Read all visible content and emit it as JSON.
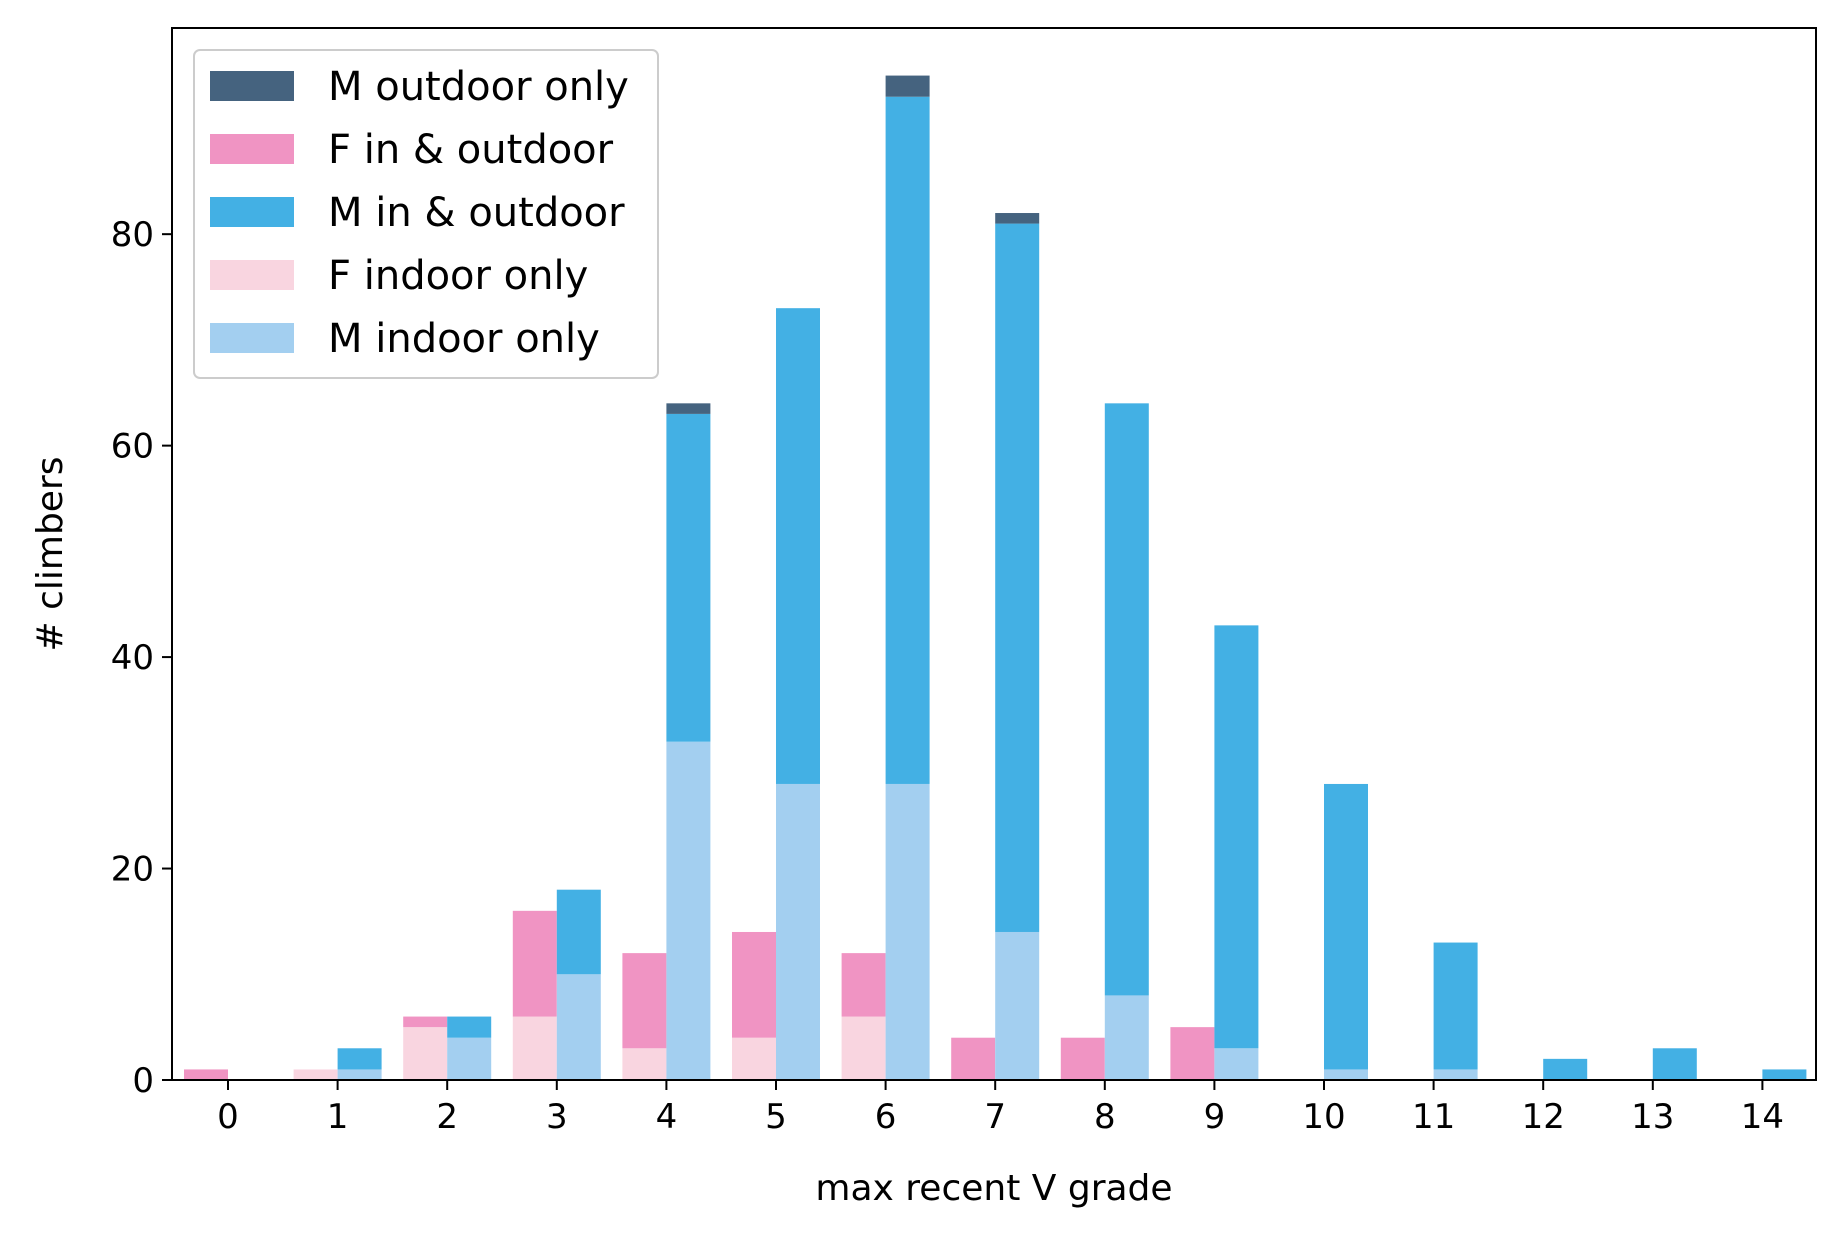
{
  "chart_data": {
    "type": "bar",
    "stacked": true,
    "xlabel": "max recent V grade",
    "ylabel": "# climbers",
    "categories": [
      "0",
      "1",
      "2",
      "3",
      "4",
      "5",
      "6",
      "7",
      "8",
      "9",
      "10",
      "11",
      "12",
      "13",
      "14"
    ],
    "ylim": [
      0,
      100
    ],
    "yticks": [
      0,
      20,
      40,
      60,
      80
    ],
    "grid": false,
    "legend_position": "top-left",
    "groups": [
      {
        "gender": "F",
        "series": [
          {
            "name": "F indoor only",
            "color": "#f9d5e0",
            "values": [
              0,
              1,
              5,
              6,
              3,
              4,
              6,
              0,
              0,
              0,
              0,
              0,
              0,
              0,
              0
            ]
          },
          {
            "name": "F in & outdoor",
            "color": "#f094c3",
            "values": [
              1,
              0,
              1,
              10,
              9,
              10,
              6,
              4,
              4,
              5,
              0,
              0,
              0,
              0,
              0
            ]
          }
        ]
      },
      {
        "gender": "M",
        "series": [
          {
            "name": "M indoor only",
            "color": "#a3cff0",
            "values": [
              0,
              1,
              4,
              10,
              32,
              28,
              28,
              14,
              8,
              3,
              1,
              1,
              0,
              0,
              0
            ]
          },
          {
            "name": "M in & outdoor",
            "color": "#43b0e4",
            "values": [
              0,
              2,
              2,
              8,
              31,
              45,
              65,
              67,
              56,
              40,
              27,
              12,
              2,
              3,
              1
            ]
          },
          {
            "name": "M outdoor only",
            "color": "#45637f",
            "values": [
              0,
              0,
              0,
              0,
              1,
              0,
              2,
              1,
              0,
              0,
              0,
              0,
              0,
              0,
              0
            ]
          }
        ]
      }
    ],
    "legend": [
      {
        "name": "M outdoor only",
        "color": "#45637f"
      },
      {
        "name": "F in & outdoor",
        "color": "#f094c3"
      },
      {
        "name": "M in & outdoor",
        "color": "#43b0e4"
      },
      {
        "name": "F indoor only",
        "color": "#f9d5e0"
      },
      {
        "name": "M indoor only",
        "color": "#a3cff0"
      }
    ]
  }
}
